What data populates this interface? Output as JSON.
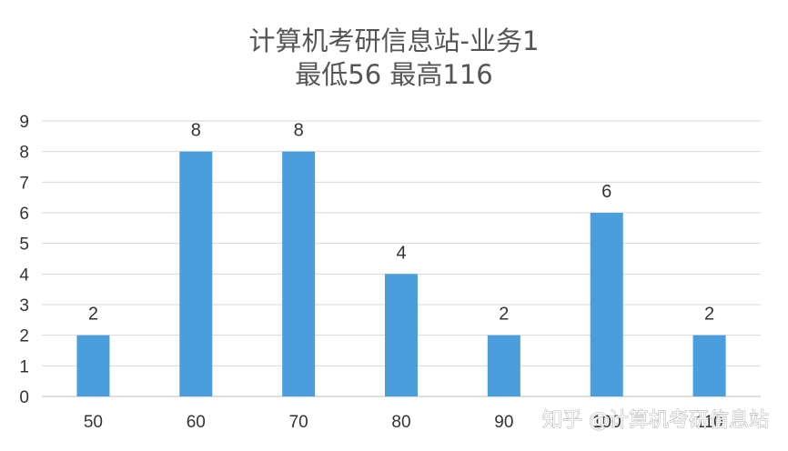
{
  "chart_data": {
    "type": "bar",
    "title": "计算机考研信息站-业务1",
    "subtitle": "最低56 最高116",
    "categories": [
      "50",
      "60",
      "70",
      "80",
      "90",
      "100",
      "110"
    ],
    "values": [
      2,
      8,
      8,
      4,
      2,
      6,
      2
    ],
    "data_labels": [
      "2",
      "8",
      "8",
      "4",
      "2",
      "6",
      "2"
    ],
    "ylim": [
      0,
      9
    ],
    "y_ticks": [
      "0",
      "1",
      "2",
      "3",
      "4",
      "5",
      "6",
      "7",
      "8",
      "9"
    ],
    "grid": true,
    "legend": "none",
    "bar_color": "#4a9edc",
    "grid_color": "#d9d9d9"
  },
  "watermark": {
    "text": "知乎 @计算机考研信息站"
  }
}
